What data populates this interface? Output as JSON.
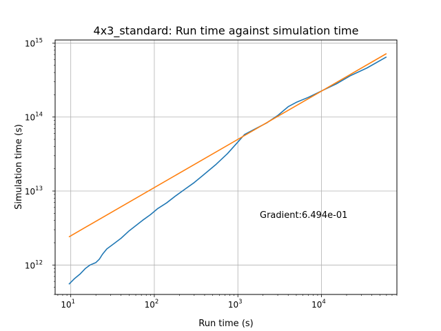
{
  "chart_data": {
    "type": "line",
    "title": "4x3_standard: Run time against simulation time",
    "xlabel": "Run time (s)",
    "ylabel": "Simulation time (s)",
    "xscale": "log",
    "yscale": "log",
    "xlim": [
      6.5,
      80000
    ],
    "ylim": [
      400000000000,
      1100000000000000
    ],
    "grid": true,
    "x_major_ticks": [
      {
        "value": 10,
        "base": "10",
        "exp": "1"
      },
      {
        "value": 100,
        "base": "10",
        "exp": "2"
      },
      {
        "value": 1000,
        "base": "10",
        "exp": "3"
      },
      {
        "value": 10000,
        "base": "10",
        "exp": "4"
      }
    ],
    "y_major_ticks": [
      {
        "value": 1000000000000,
        "base": "10",
        "exp": "12"
      },
      {
        "value": 10000000000000,
        "base": "10",
        "exp": "13"
      },
      {
        "value": 100000000000000,
        "base": "10",
        "exp": "14"
      },
      {
        "value": 1000000000000000,
        "base": "10",
        "exp": "15"
      }
    ],
    "annotation": "Gradient:6.494e-01",
    "series": [
      {
        "color": "#1f77b4",
        "points": [
          [
            9.5,
            550000000000
          ],
          [
            11,
            650000000000
          ],
          [
            13,
            760000000000
          ],
          [
            15,
            900000000000
          ],
          [
            17,
            1000000000000
          ],
          [
            20,
            1080000000000
          ],
          [
            22,
            1200000000000
          ],
          [
            24,
            1400000000000
          ],
          [
            27,
            1650000000000
          ],
          [
            32,
            1900000000000
          ],
          [
            40,
            2300000000000
          ],
          [
            50,
            2900000000000
          ],
          [
            60,
            3400000000000
          ],
          [
            72,
            4000000000000
          ],
          [
            90,
            4800000000000
          ],
          [
            110,
            5800000000000
          ],
          [
            140,
            6900000000000
          ],
          [
            180,
            8600000000000
          ],
          [
            230,
            10500000000000
          ],
          [
            300,
            13000000000000
          ],
          [
            400,
            17000000000000
          ],
          [
            550,
            23000000000000
          ],
          [
            750,
            32000000000000
          ],
          [
            1000,
            46000000000000
          ],
          [
            1200,
            58000000000000
          ],
          [
            1600,
            69000000000000
          ],
          [
            2200,
            83000000000000
          ],
          [
            3000,
            105000000000000
          ],
          [
            4000,
            138000000000000
          ],
          [
            5000,
            158000000000000
          ],
          [
            7000,
            185000000000000
          ],
          [
            10000,
            225000000000000
          ],
          [
            15000,
            280000000000000
          ],
          [
            22000,
            360000000000000
          ],
          [
            35000,
            460000000000000
          ],
          [
            60000,
            650000000000000
          ]
        ]
      },
      {
        "color": "#ff7f0e",
        "points": [
          [
            9.5,
            2400000000000
          ],
          [
            60000,
            720000000000000
          ]
        ]
      }
    ]
  }
}
